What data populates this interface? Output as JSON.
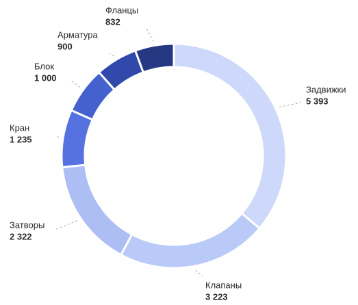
{
  "chart_data": {
    "type": "donut",
    "categories": [
      "Задвижки",
      "Клапаны",
      "Затворы",
      "Кран",
      "Блок",
      "Арматура",
      "Фланцы"
    ],
    "values": [
      5393,
      3223,
      2322,
      1235,
      1000,
      900,
      832
    ],
    "value_labels": [
      "5 393",
      "3 223",
      "2 322",
      "1 235",
      "1 000",
      "900",
      "832"
    ],
    "colors": [
      "#cdd8fa",
      "#b9c9f8",
      "#adbef5",
      "#5672e0",
      "#4461cd",
      "#3049aa",
      "#263882"
    ]
  }
}
